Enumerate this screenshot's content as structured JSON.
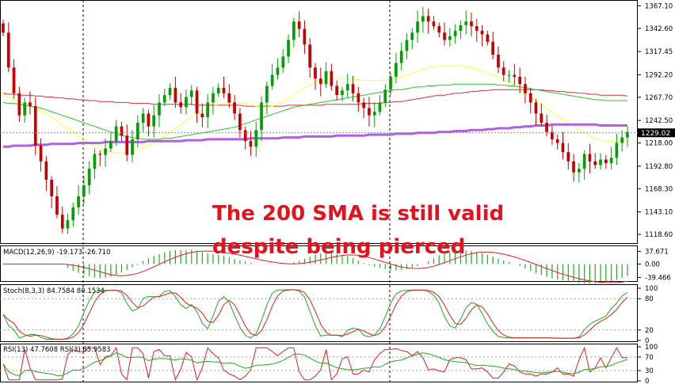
{
  "chart_data": {
    "type": "candlestick",
    "annotation": [
      "The 200 SMA is still valid",
      "despite being pierced"
    ],
    "price": {
      "ylim": [
        1110,
        1370
      ],
      "ticks": [
        "1367.10",
        "1342.60",
        "1317.45",
        "1292.20",
        "1267.70",
        "1242.50",
        "1218.00",
        "1192.80",
        "1168.30",
        "1143.10",
        "1118.60"
      ],
      "tick_values": [
        1367.1,
        1342.6,
        1317.45,
        1292.2,
        1267.7,
        1242.5,
        1218.0,
        1192.8,
        1168.3,
        1143.1,
        1118.6
      ],
      "current_label": "1229.02",
      "current_value": 1229.02,
      "closes": [
        1338,
        1300,
        1272,
        1248,
        1262,
        1258,
        1215,
        1198,
        1178,
        1160,
        1140,
        1125,
        1134,
        1148,
        1160,
        1172,
        1190,
        1206,
        1205,
        1212,
        1220,
        1236,
        1226,
        1205,
        1222,
        1240,
        1250,
        1236,
        1248,
        1262,
        1270,
        1278,
        1262,
        1257,
        1268,
        1275,
        1250,
        1246,
        1262,
        1272,
        1278,
        1272,
        1262,
        1250,
        1232,
        1220,
        1214,
        1232,
        1262,
        1280,
        1292,
        1300,
        1312,
        1330,
        1350,
        1342,
        1325,
        1300,
        1288,
        1282,
        1296,
        1280,
        1270,
        1275,
        1282,
        1272,
        1262,
        1256,
        1248,
        1252,
        1262,
        1276,
        1290,
        1305,
        1318,
        1330,
        1338,
        1350,
        1356,
        1350,
        1345,
        1338,
        1330,
        1334,
        1340,
        1346,
        1350,
        1345,
        1340,
        1336,
        1328,
        1314,
        1300,
        1292,
        1292,
        1290,
        1282,
        1272,
        1262,
        1250,
        1240,
        1230,
        1222,
        1218,
        1208,
        1198,
        1186,
        1190,
        1206,
        1198,
        1194,
        1200,
        1196,
        1202,
        1218,
        1224,
        1230
      ],
      "sma_200": [
        1214,
        1214,
        1215,
        1215,
        1215,
        1215,
        1216,
        1216,
        1216,
        1217,
        1217,
        1217,
        1217,
        1217,
        1218,
        1218,
        1218,
        1218,
        1218,
        1219,
        1219,
        1219,
        1219,
        1219,
        1219,
        1219,
        1219,
        1220,
        1220,
        1220,
        1220,
        1220,
        1220,
        1220,
        1221,
        1221,
        1221,
        1221,
        1222,
        1222,
        1222,
        1222,
        1222,
        1222,
        1222,
        1222,
        1223,
        1223,
        1223,
        1223,
        1223,
        1223,
        1224,
        1224,
        1224,
        1224,
        1225,
        1225,
        1225,
        1225,
        1225,
        1225,
        1226,
        1226,
        1226,
        1226,
        1226,
        1226,
        1227,
        1227,
        1227,
        1227,
        1227,
        1228,
        1228,
        1228,
        1228,
        1229,
        1229,
        1229,
        1229,
        1230,
        1230,
        1230,
        1231,
        1231,
        1231,
        1232,
        1232,
        1232,
        1233,
        1233,
        1234,
        1234,
        1234,
        1235,
        1235,
        1236,
        1236,
        1237,
        1237,
        1237,
        1238,
        1238,
        1238,
        1238,
        1238,
        1238,
        1238,
        1238,
        1238,
        1237,
        1237,
        1237,
        1237,
        1237,
        1237
      ],
      "sma_100": [
        1272,
        1271,
        1271,
        1270,
        1270,
        1270,
        1269,
        1269,
        1268,
        1268,
        1267,
        1267,
        1266,
        1266,
        1265,
        1265,
        1264,
        1264,
        1263,
        1263,
        1263,
        1262,
        1262,
        1262,
        1261,
        1261,
        1261,
        1261,
        1260,
        1260,
        1260,
        1260,
        1260,
        1260,
        1260,
        1260,
        1259,
        1259,
        1259,
        1259,
        1259,
        1259,
        1259,
        1259,
        1259,
        1258,
        1258,
        1258,
        1258,
        1258,
        1258,
        1258,
        1258,
        1259,
        1259,
        1259,
        1259,
        1259,
        1259,
        1259,
        1260,
        1260,
        1260,
        1260,
        1260,
        1260,
        1260,
        1261,
        1261,
        1261,
        1261,
        1262,
        1262,
        1263,
        1263,
        1264,
        1265,
        1266,
        1267,
        1268,
        1269,
        1270,
        1270,
        1271,
        1272,
        1272,
        1273,
        1274,
        1274,
        1275,
        1275,
        1276,
        1276,
        1276,
        1276,
        1276,
        1276,
        1276,
        1276,
        1276,
        1276,
        1275,
        1275,
        1274,
        1274,
        1273,
        1273,
        1272,
        1272,
        1271,
        1271,
        1270,
        1270,
        1270,
        1270,
        1270,
        1269
      ],
      "sma_50": [
        1262,
        1261,
        1261,
        1260,
        1259,
        1258,
        1257,
        1256,
        1254,
        1252,
        1250,
        1248,
        1246,
        1244,
        1242,
        1240,
        1238,
        1236,
        1234,
        1232,
        1230,
        1228,
        1226,
        1225,
        1224,
        1223,
        1222,
        1222,
        1222,
        1222,
        1223,
        1223,
        1224,
        1225,
        1226,
        1227,
        1228,
        1229,
        1230,
        1231,
        1232,
        1233,
        1234,
        1235,
        1237,
        1239,
        1241,
        1243,
        1245,
        1247,
        1249,
        1251,
        1253,
        1255,
        1257,
        1258,
        1259,
        1260,
        1261,
        1262,
        1263,
        1264,
        1265,
        1266,
        1267,
        1268,
        1269,
        1270,
        1271,
        1272,
        1273,
        1274,
        1275,
        1276,
        1276,
        1277,
        1278,
        1279,
        1279,
        1280,
        1280,
        1281,
        1281,
        1281,
        1282,
        1282,
        1282,
        1282,
        1282,
        1282,
        1282,
        1282,
        1281,
        1281,
        1280,
        1280,
        1279,
        1278,
        1277,
        1276,
        1275,
        1274,
        1273,
        1272,
        1271,
        1270,
        1269,
        1268,
        1267,
        1266,
        1265,
        1265,
        1264,
        1264,
        1264,
        1264,
        1264
      ],
      "sma_20": [
        1270,
        1268,
        1265,
        1262,
        1260,
        1258,
        1256,
        1253,
        1250,
        1246,
        1242,
        1238,
        1234,
        1230,
        1226,
        1222,
        1218,
        1214,
        1212,
        1210,
        1208,
        1207,
        1207,
        1208,
        1209,
        1211,
        1213,
        1215,
        1218,
        1222,
        1226,
        1230,
        1234,
        1238,
        1242,
        1246,
        1250,
        1253,
        1256,
        1258,
        1260,
        1261,
        1262,
        1262,
        1262,
        1261,
        1260,
        1258,
        1257,
        1257,
        1258,
        1260,
        1263,
        1266,
        1270,
        1274,
        1278,
        1281,
        1284,
        1286,
        1287,
        1288,
        1288,
        1288,
        1288,
        1287,
        1287,
        1286,
        1286,
        1286,
        1286,
        1286,
        1287,
        1288,
        1290,
        1292,
        1294,
        1296,
        1298,
        1300,
        1301,
        1302,
        1302,
        1302,
        1302,
        1302,
        1301,
        1300,
        1298,
        1296,
        1294,
        1292,
        1290,
        1287,
        1284,
        1280,
        1276,
        1272,
        1268,
        1264,
        1260,
        1256,
        1252,
        1248,
        1244,
        1240,
        1236,
        1232,
        1229,
        1226,
        1223,
        1221,
        1220,
        1220,
        1220,
        1220,
        1220
      ]
    },
    "macd": {
      "label": "MACD(12,26,9) -19.173 -26.710",
      "ticks": [
        "37.671",
        "0.00",
        "-39.466"
      ],
      "tick_values": [
        37.671,
        0,
        -39.466
      ],
      "ylim": [
        -48,
        48
      ]
    },
    "stoch": {
      "label": "Stoch(8,3,3) 84.7584 80.1534",
      "ticks": [
        "100",
        "80",
        "20",
        "0"
      ],
      "tick_values": [
        100,
        80,
        20,
        0
      ],
      "ylim": [
        0,
        100
      ]
    },
    "rsi": {
      "label": "RSI(13) 47.7608 RSI(3) 85.9583",
      "ticks": [
        "100",
        "70",
        "30",
        "0"
      ],
      "tick_values": [
        100,
        70,
        30,
        0
      ],
      "ylim": [
        0,
        100
      ]
    },
    "colors": {
      "bull": "#00a000",
      "bear": "#c80000",
      "sma_200": "#b060e0",
      "sma_100": "#e03030",
      "sma_50": "#30c030",
      "sma_20": "#ffff40",
      "annotation": "#e8101c",
      "macd_signal": "#e02020",
      "macd_hist": "#22aa22",
      "stoch_k": "#22aa22",
      "stoch_d": "#e02020",
      "rsi_fast": "#e02020",
      "rsi_slow": "#22aa22"
    }
  }
}
